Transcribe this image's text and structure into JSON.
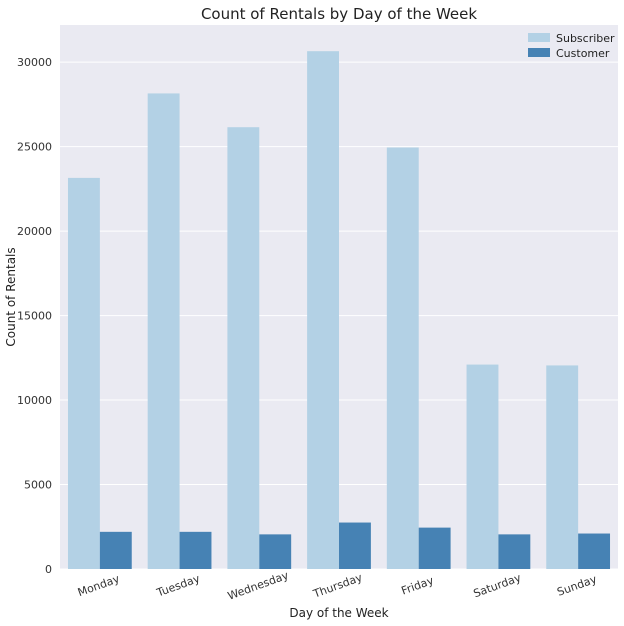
{
  "chart_data": {
    "type": "bar",
    "title": "Count of Rentals by Day of the Week",
    "xlabel": "Day of the Week",
    "ylabel": "Count of Rentals",
    "categories": [
      "Monday",
      "Tuesday",
      "Wednesday",
      "Thursday",
      "Friday",
      "Saturday",
      "Sunday"
    ],
    "series": [
      {
        "name": "Subscriber",
        "color": "#b3d1e5",
        "values": [
          23150,
          28150,
          26150,
          30650,
          24950,
          12100,
          12050
        ]
      },
      {
        "name": "Customer",
        "color": "#4682b4",
        "values": [
          2200,
          2200,
          2050,
          2750,
          2450,
          2050,
          2100
        ]
      }
    ],
    "ylim": [
      0,
      32200
    ],
    "yticks": [
      0,
      5000,
      10000,
      15000,
      20000,
      25000,
      30000
    ],
    "grid": true,
    "legend_position": "top-right",
    "background": "#eaeaf2"
  }
}
